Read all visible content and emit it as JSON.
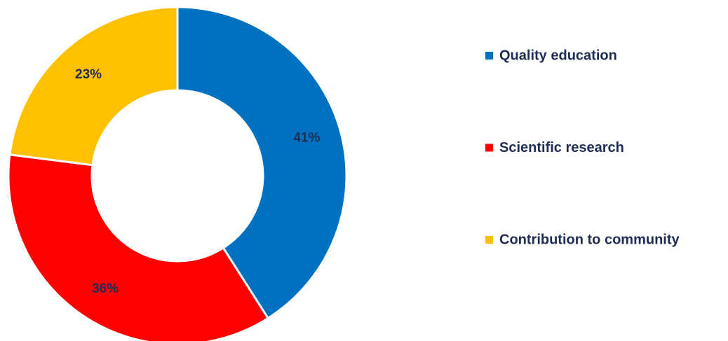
{
  "chart_data": {
    "type": "pie",
    "categories": [
      "Quality education",
      "Scientific research",
      "Contribution to community"
    ],
    "values": [
      41,
      36,
      23
    ],
    "value_labels": [
      "41%",
      "36%",
      "23%"
    ],
    "colors": [
      "#0070c0",
      "#ff0000",
      "#ffc000"
    ],
    "legend": "right"
  }
}
